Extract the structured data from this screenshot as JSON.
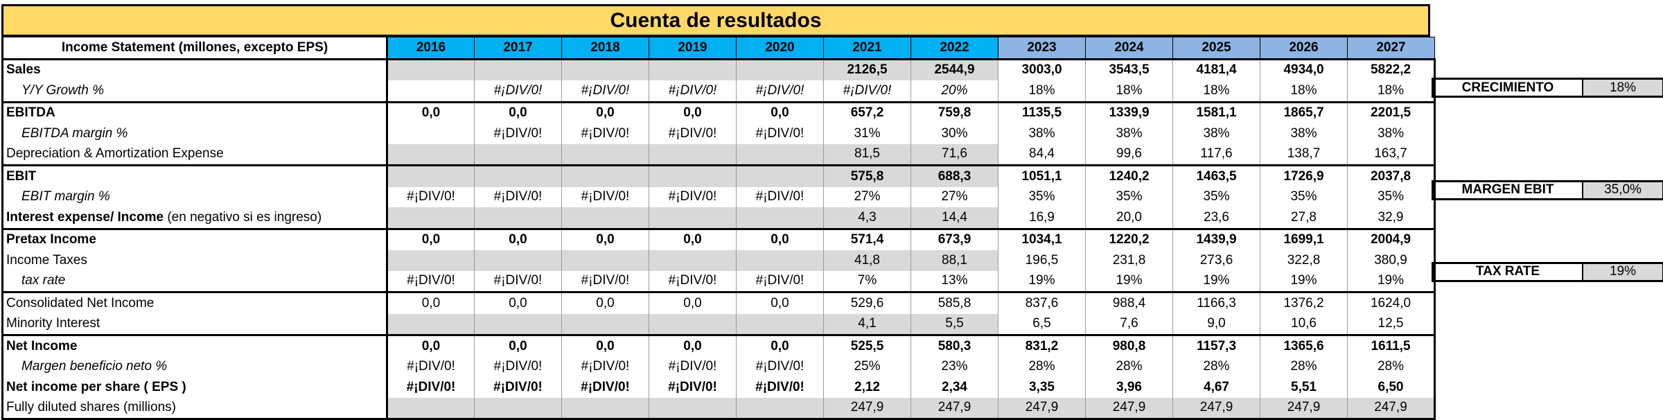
{
  "title": "Cuenta de resultados",
  "header": {
    "label": "Income Statement (millones, excepto EPS)",
    "years": [
      "2016",
      "2017",
      "2018",
      "2019",
      "2020",
      "2021",
      "2022",
      "2023",
      "2024",
      "2025",
      "2026",
      "2027"
    ]
  },
  "rows": [
    {
      "label": "Sales",
      "extra": "",
      "style": "bold",
      "indent": false,
      "sep": true,
      "cells": [
        "",
        "",
        "",
        "",
        "",
        "2126,5",
        "2544,9",
        "3003,0",
        "3543,5",
        "4181,4",
        "4934,0",
        "5822,2"
      ],
      "grey": [
        true,
        true,
        true,
        true,
        true,
        true,
        true,
        false,
        false,
        false,
        false,
        false
      ]
    },
    {
      "label": "Y/Y Growth %",
      "extra": "",
      "style": "italic",
      "indent": true,
      "sep": false,
      "cells": [
        "",
        "#¡DIV/0!",
        "#¡DIV/0!",
        "#¡DIV/0!",
        "#¡DIV/0!",
        "#¡DIV/0!",
        "20%",
        "18%",
        "18%",
        "18%",
        "18%",
        "18%"
      ],
      "grey": [
        false,
        false,
        false,
        false,
        false,
        false,
        false,
        false,
        false,
        false,
        false,
        false
      ],
      "cell_italic": [
        false,
        true,
        true,
        true,
        true,
        true,
        true,
        false,
        false,
        false,
        false,
        false
      ]
    },
    {
      "label": "EBITDA",
      "extra": "",
      "style": "bold",
      "indent": false,
      "sep": true,
      "cells": [
        "0,0",
        "0,0",
        "0,0",
        "0,0",
        "0,0",
        "657,2",
        "759,8",
        "1135,5",
        "1339,9",
        "1581,1",
        "1865,7",
        "2201,5"
      ],
      "grey": [
        false,
        false,
        false,
        false,
        false,
        false,
        false,
        false,
        false,
        false,
        false,
        false
      ]
    },
    {
      "label": "EBITDA margin %",
      "extra": "",
      "style": "italic",
      "indent": true,
      "sep": false,
      "cells": [
        "",
        "#¡DIV/0!",
        "#¡DIV/0!",
        "#¡DIV/0!",
        "#¡DIV/0!",
        "31%",
        "30%",
        "38%",
        "38%",
        "38%",
        "38%",
        "38%"
      ],
      "grey": [
        false,
        false,
        false,
        false,
        false,
        false,
        false,
        false,
        false,
        false,
        false,
        false
      ],
      "cells_plain": true
    },
    {
      "label": "Depreciation & Amortization Expense",
      "extra": "",
      "style": "plain",
      "indent": false,
      "sep": false,
      "cells": [
        "",
        "",
        "",
        "",
        "",
        "81,5",
        "71,6",
        "84,4",
        "99,6",
        "117,6",
        "138,7",
        "163,7"
      ],
      "grey": [
        true,
        true,
        true,
        true,
        true,
        true,
        true,
        false,
        false,
        false,
        false,
        false
      ]
    },
    {
      "label": "EBIT",
      "extra": "",
      "style": "bold",
      "indent": false,
      "sep": true,
      "cells": [
        "",
        "",
        "",
        "",
        "",
        "575,8",
        "688,3",
        "1051,1",
        "1240,2",
        "1463,5",
        "1726,9",
        "2037,8"
      ],
      "grey": [
        true,
        true,
        true,
        true,
        true,
        true,
        true,
        false,
        false,
        false,
        false,
        false
      ]
    },
    {
      "label": "EBIT margin %",
      "extra": "",
      "style": "italic",
      "indent": true,
      "sep": false,
      "cells": [
        "#¡DIV/0!",
        "#¡DIV/0!",
        "#¡DIV/0!",
        "#¡DIV/0!",
        "#¡DIV/0!",
        "27%",
        "27%",
        "35%",
        "35%",
        "35%",
        "35%",
        "35%"
      ],
      "grey": [
        false,
        false,
        false,
        false,
        false,
        false,
        false,
        false,
        false,
        false,
        false,
        false
      ],
      "cells_plain": true
    },
    {
      "label": "Interest expense/ Income",
      "extra": " (en negativo si es ingreso)",
      "style": "bold",
      "indent": false,
      "sep": false,
      "cells": [
        "",
        "",
        "",
        "",
        "",
        "4,3",
        "14,4",
        "16,9",
        "20,0",
        "23,6",
        "27,8",
        "32,9"
      ],
      "grey": [
        true,
        true,
        true,
        true,
        true,
        true,
        true,
        false,
        false,
        false,
        false,
        false
      ],
      "cells_plain": true
    },
    {
      "label": "Pretax Income",
      "extra": "",
      "style": "bold",
      "indent": false,
      "sep": true,
      "cells": [
        "0,0",
        "0,0",
        "0,0",
        "0,0",
        "0,0",
        "571,4",
        "673,9",
        "1034,1",
        "1220,2",
        "1439,9",
        "1699,1",
        "2004,9"
      ],
      "grey": [
        false,
        false,
        false,
        false,
        false,
        false,
        false,
        false,
        false,
        false,
        false,
        false
      ]
    },
    {
      "label": "Income Taxes",
      "extra": "",
      "style": "plain",
      "indent": false,
      "sep": false,
      "cells": [
        "",
        "",
        "",
        "",
        "",
        "41,8",
        "88,1",
        "196,5",
        "231,8",
        "273,6",
        "322,8",
        "380,9"
      ],
      "grey": [
        true,
        true,
        true,
        true,
        true,
        true,
        true,
        false,
        false,
        false,
        false,
        false
      ]
    },
    {
      "label": "tax rate",
      "extra": "",
      "style": "italic",
      "indent": true,
      "sep": false,
      "cells": [
        "#¡DIV/0!",
        "#¡DIV/0!",
        "#¡DIV/0!",
        "#¡DIV/0!",
        "#¡DIV/0!",
        "7%",
        "13%",
        "19%",
        "19%",
        "19%",
        "19%",
        "19%"
      ],
      "grey": [
        false,
        false,
        false,
        false,
        false,
        false,
        false,
        false,
        false,
        false,
        false,
        false
      ],
      "cells_plain": true
    },
    {
      "label": "Consolidated Net Income",
      "extra": "",
      "style": "plain",
      "indent": false,
      "sep": true,
      "cells": [
        "0,0",
        "0,0",
        "0,0",
        "0,0",
        "0,0",
        "529,6",
        "585,8",
        "837,6",
        "988,4",
        "1166,3",
        "1376,2",
        "1624,0"
      ],
      "grey": [
        false,
        false,
        false,
        false,
        false,
        false,
        false,
        false,
        false,
        false,
        false,
        false
      ]
    },
    {
      "label": "Minority Interest",
      "extra": "",
      "style": "plain",
      "indent": false,
      "sep": false,
      "cells": [
        "",
        "",
        "",
        "",
        "",
        "4,1",
        "5,5",
        "6,5",
        "7,6",
        "9,0",
        "10,6",
        "12,5"
      ],
      "grey": [
        true,
        true,
        true,
        true,
        true,
        true,
        true,
        false,
        false,
        false,
        false,
        false
      ]
    },
    {
      "label": "Net Income",
      "extra": "",
      "style": "bold",
      "indent": false,
      "sep": true,
      "cells": [
        "0,0",
        "0,0",
        "0,0",
        "0,0",
        "0,0",
        "525,5",
        "580,3",
        "831,2",
        "980,8",
        "1157,3",
        "1365,6",
        "1611,5"
      ],
      "grey": [
        false,
        false,
        false,
        false,
        false,
        false,
        false,
        false,
        false,
        false,
        false,
        false
      ]
    },
    {
      "label": "Margen beneficio neto %",
      "extra": "",
      "style": "italic",
      "indent": true,
      "sep": false,
      "cells": [
        "#¡DIV/0!",
        "#¡DIV/0!",
        "#¡DIV/0!",
        "#¡DIV/0!",
        "#¡DIV/0!",
        "25%",
        "23%",
        "28%",
        "28%",
        "28%",
        "28%",
        "28%"
      ],
      "grey": [
        false,
        false,
        false,
        false,
        false,
        false,
        false,
        false,
        false,
        false,
        false,
        false
      ],
      "cells_plain": true
    },
    {
      "label": "Net income per share ( EPS )",
      "extra": "",
      "style": "bold",
      "indent": false,
      "sep": false,
      "cells": [
        "#¡DIV/0!",
        "#¡DIV/0!",
        "#¡DIV/0!",
        "#¡DIV/0!",
        "#¡DIV/0!",
        "2,12",
        "2,34",
        "3,35",
        "3,96",
        "4,67",
        "5,51",
        "6,50"
      ],
      "grey": [
        false,
        false,
        false,
        false,
        false,
        false,
        false,
        false,
        false,
        false,
        false,
        false
      ]
    },
    {
      "label": "Fully diluted shares  (millions)",
      "extra": "",
      "style": "plain",
      "indent": false,
      "sep": false,
      "cells": [
        "",
        "",
        "",
        "",
        "",
        "247,9",
        "247,9",
        "247,9",
        "247,9",
        "247,9",
        "247,9",
        "247,9"
      ],
      "grey": [
        true,
        true,
        true,
        true,
        true,
        true,
        true,
        true,
        true,
        true,
        true,
        true
      ],
      "cells_plain": true
    }
  ],
  "assumptions": [
    {
      "key": "CRECIMIENTO",
      "value": "18%",
      "row": 1
    },
    {
      "key": "MARGEN EBIT",
      "value": "35,0%",
      "row": 6
    },
    {
      "key": "TAX RATE",
      "value": "19%",
      "row": 10
    }
  ],
  "colors": {
    "title_bg": "#ffd966",
    "historic_header": "#00b0f0",
    "projected_header": "#8db4e2",
    "input_cell": "#d9d9d9"
  }
}
